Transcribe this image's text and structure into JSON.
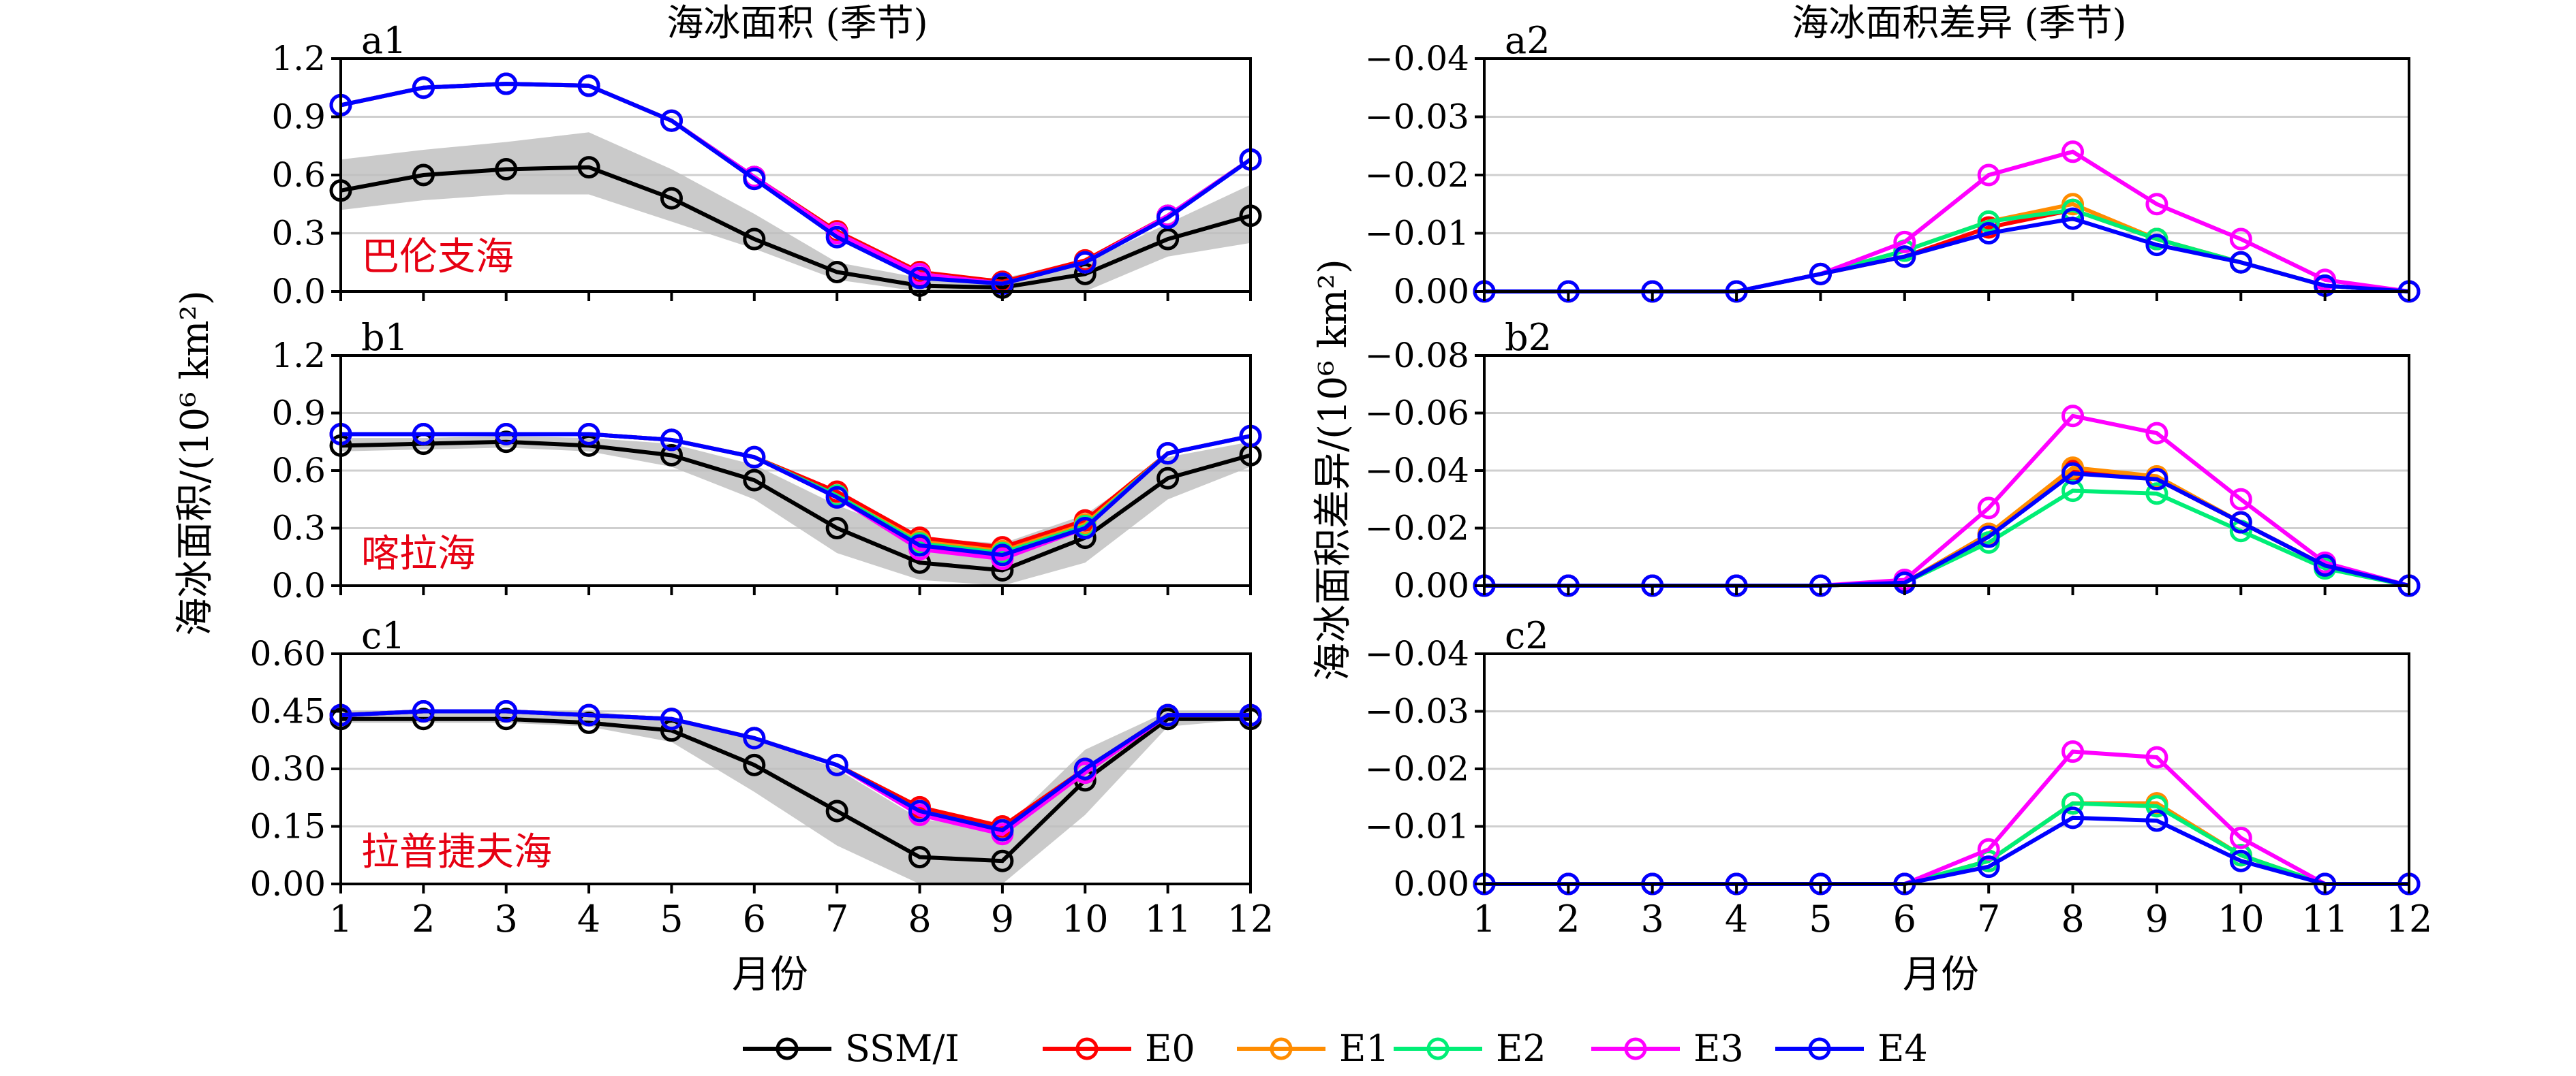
{
  "chart_data": {
    "type": "line",
    "x": [
      1,
      2,
      3,
      4,
      5,
      6,
      7,
      8,
      9,
      10,
      11,
      12
    ],
    "xlabel": "月份",
    "left_title": "海冰面积 (季节)",
    "right_title": "海冰面积差异 (季节)",
    "left_ylabel": "海冰面积/(10⁶ km²)",
    "right_ylabel": "海冰面积差异/(10⁶ km²)",
    "legend": [
      {
        "name": "SSM/I",
        "color": "#000000"
      },
      {
        "name": "E0",
        "color": "#ff0000"
      },
      {
        "name": "E1",
        "color": "#ff8c00"
      },
      {
        "name": "E2",
        "color": "#00ee76"
      },
      {
        "name": "E3",
        "color": "#ff00ff"
      },
      {
        "name": "E4",
        "color": "#0000ff"
      }
    ],
    "panels": [
      {
        "id": "a1",
        "label": "a1",
        "region": "巴伦支海",
        "ylim": [
          0,
          1.2
        ],
        "yticks": [
          "0.0",
          "0.3",
          "0.6",
          "0.9",
          "1.2"
        ],
        "yvals": [
          0,
          0.3,
          0.6,
          0.9,
          1.2
        ],
        "band_lo": [
          0.42,
          0.47,
          0.5,
          0.5,
          0.36,
          0.22,
          0.06,
          0.0,
          0.0,
          0.0,
          0.18,
          0.25
        ],
        "band_hi": [
          0.68,
          0.73,
          0.77,
          0.82,
          0.63,
          0.4,
          0.15,
          0.07,
          0.07,
          0.15,
          0.35,
          0.55
        ],
        "series": [
          {
            "name": "SSM/I",
            "values": [
              0.52,
              0.6,
              0.63,
              0.64,
              0.48,
              0.27,
              0.1,
              0.03,
              0.02,
              0.09,
              0.27,
              0.39
            ]
          },
          {
            "name": "E0",
            "values": [
              0.96,
              1.05,
              1.07,
              1.06,
              0.88,
              0.59,
              0.31,
              0.1,
              0.05,
              0.16,
              0.39,
              0.68
            ]
          },
          {
            "name": "E1",
            "values": [
              0.96,
              1.05,
              1.07,
              1.06,
              0.88,
              0.59,
              0.3,
              0.09,
              0.04,
              0.15,
              0.39,
              0.68
            ]
          },
          {
            "name": "E2",
            "values": [
              0.96,
              1.05,
              1.07,
              1.06,
              0.88,
              0.59,
              0.3,
              0.09,
              0.04,
              0.15,
              0.39,
              0.68
            ]
          },
          {
            "name": "E3",
            "values": [
              0.96,
              1.05,
              1.07,
              1.06,
              0.88,
              0.59,
              0.3,
              0.09,
              0.04,
              0.15,
              0.39,
              0.68
            ]
          },
          {
            "name": "E4",
            "values": [
              0.96,
              1.05,
              1.07,
              1.06,
              0.88,
              0.58,
              0.28,
              0.07,
              0.04,
              0.15,
              0.38,
              0.68
            ]
          }
        ]
      },
      {
        "id": "b1",
        "label": "b1",
        "region": "喀拉海",
        "ylim": [
          0,
          1.2
        ],
        "yticks": [
          "0.0",
          "0.3",
          "0.6",
          "0.9",
          "1.2"
        ],
        "yvals": [
          0,
          0.3,
          0.6,
          0.9,
          1.2
        ],
        "band_lo": [
          0.7,
          0.71,
          0.72,
          0.7,
          0.62,
          0.45,
          0.17,
          0.03,
          0.0,
          0.12,
          0.45,
          0.62
        ],
        "band_hi": [
          0.77,
          0.77,
          0.78,
          0.77,
          0.74,
          0.63,
          0.42,
          0.25,
          0.22,
          0.37,
          0.67,
          0.75
        ],
        "series": [
          {
            "name": "SSM/I",
            "values": [
              0.73,
              0.74,
              0.75,
              0.73,
              0.68,
              0.55,
              0.3,
              0.12,
              0.08,
              0.25,
              0.56,
              0.68
            ]
          },
          {
            "name": "E0",
            "values": [
              0.79,
              0.79,
              0.79,
              0.79,
              0.76,
              0.67,
              0.49,
              0.25,
              0.2,
              0.34,
              0.69,
              0.78
            ]
          },
          {
            "name": "E1",
            "values": [
              0.79,
              0.79,
              0.79,
              0.79,
              0.76,
              0.67,
              0.47,
              0.23,
              0.18,
              0.32,
              0.69,
              0.78
            ]
          },
          {
            "name": "E2",
            "values": [
              0.79,
              0.79,
              0.79,
              0.79,
              0.76,
              0.67,
              0.47,
              0.22,
              0.17,
              0.31,
              0.69,
              0.78
            ]
          },
          {
            "name": "E3",
            "values": [
              0.79,
              0.79,
              0.79,
              0.79,
              0.76,
              0.67,
              0.46,
              0.19,
              0.14,
              0.3,
              0.69,
              0.78
            ]
          },
          {
            "name": "E4",
            "values": [
              0.79,
              0.79,
              0.79,
              0.79,
              0.76,
              0.67,
              0.46,
              0.21,
              0.16,
              0.3,
              0.69,
              0.78
            ]
          }
        ]
      },
      {
        "id": "c1",
        "label": "c1",
        "region": "拉普捷夫海",
        "ylim": [
          0,
          0.6
        ],
        "yticks": [
          "0.00",
          "0.15",
          "0.30",
          "0.45",
          "0.60"
        ],
        "yvals": [
          0,
          0.15,
          0.3,
          0.45,
          0.6
        ],
        "band_lo": [
          0.42,
          0.42,
          0.42,
          0.41,
          0.37,
          0.24,
          0.1,
          0.0,
          0.0,
          0.18,
          0.41,
          0.43
        ],
        "band_hi": [
          0.45,
          0.45,
          0.45,
          0.45,
          0.43,
          0.38,
          0.3,
          0.17,
          0.14,
          0.35,
          0.45,
          0.45
        ],
        "series": [
          {
            "name": "SSM/I",
            "values": [
              0.43,
              0.43,
              0.43,
              0.42,
              0.4,
              0.31,
              0.19,
              0.07,
              0.06,
              0.27,
              0.43,
              0.43
            ]
          },
          {
            "name": "E0",
            "values": [
              0.44,
              0.45,
              0.45,
              0.44,
              0.43,
              0.38,
              0.31,
              0.2,
              0.15,
              0.3,
              0.44,
              0.44
            ]
          },
          {
            "name": "E1",
            "values": [
              0.44,
              0.45,
              0.45,
              0.44,
              0.43,
              0.38,
              0.31,
              0.19,
              0.14,
              0.29,
              0.44,
              0.44
            ]
          },
          {
            "name": "E2",
            "values": [
              0.44,
              0.45,
              0.45,
              0.44,
              0.43,
              0.38,
              0.31,
              0.19,
              0.14,
              0.29,
              0.44,
              0.44
            ]
          },
          {
            "name": "E3",
            "values": [
              0.44,
              0.45,
              0.45,
              0.44,
              0.43,
              0.38,
              0.31,
              0.18,
              0.13,
              0.29,
              0.44,
              0.44
            ]
          },
          {
            "name": "E4",
            "values": [
              0.44,
              0.45,
              0.45,
              0.44,
              0.43,
              0.38,
              0.31,
              0.19,
              0.14,
              0.3,
              0.44,
              0.44
            ]
          }
        ]
      },
      {
        "id": "a2",
        "label": "a2",
        "region": "",
        "ylim": [
          0,
          -0.04
        ],
        "yticks": [
          "0.00",
          "−0.01",
          "−0.02",
          "−0.03",
          "−0.04"
        ],
        "yvals": [
          0,
          -0.01,
          -0.02,
          -0.03,
          -0.04
        ],
        "series": [
          {
            "name": "E0",
            "values": [
              0,
              0,
              0,
              0,
              -0.003,
              -0.006,
              -0.011,
              -0.014,
              -0.009,
              -0.005,
              -0.001,
              0
            ]
          },
          {
            "name": "E1",
            "values": [
              0,
              0,
              0,
              0,
              -0.003,
              -0.007,
              -0.012,
              -0.015,
              -0.009,
              -0.005,
              -0.001,
              0
            ]
          },
          {
            "name": "E2",
            "values": [
              0,
              0,
              0,
              0,
              -0.003,
              -0.007,
              -0.012,
              -0.014,
              -0.009,
              -0.005,
              -0.001,
              0
            ]
          },
          {
            "name": "E3",
            "values": [
              0,
              0,
              0,
              0,
              -0.003,
              -0.0085,
              -0.02,
              -0.024,
              -0.015,
              -0.009,
              -0.002,
              0
            ]
          },
          {
            "name": "E4",
            "values": [
              0,
              0,
              0,
              0,
              -0.003,
              -0.006,
              -0.01,
              -0.0125,
              -0.008,
              -0.005,
              -0.001,
              0
            ]
          }
        ]
      },
      {
        "id": "b2",
        "label": "b2",
        "region": "",
        "ylim": [
          0,
          -0.08
        ],
        "yticks": [
          "0.00",
          "−0.02",
          "−0.04",
          "−0.06",
          "−0.08"
        ],
        "yvals": [
          0,
          -0.02,
          -0.04,
          -0.06,
          -0.08
        ],
        "series": [
          {
            "name": "E0",
            "values": [
              0,
              0,
              0,
              0,
              0,
              -0.001,
              -0.018,
              -0.04,
              -0.037,
              -0.022,
              -0.007,
              0
            ]
          },
          {
            "name": "E1",
            "values": [
              0,
              0,
              0,
              0,
              0,
              -0.001,
              -0.018,
              -0.041,
              -0.038,
              -0.022,
              -0.007,
              0
            ]
          },
          {
            "name": "E2",
            "values": [
              0,
              0,
              0,
              0,
              0,
              -0.001,
              -0.015,
              -0.033,
              -0.032,
              -0.019,
              -0.006,
              0
            ]
          },
          {
            "name": "E3",
            "values": [
              0,
              0,
              0,
              0,
              0,
              -0.002,
              -0.027,
              -0.059,
              -0.053,
              -0.03,
              -0.008,
              0
            ]
          },
          {
            "name": "E4",
            "values": [
              0,
              0,
              0,
              0,
              0,
              -0.001,
              -0.017,
              -0.039,
              -0.037,
              -0.022,
              -0.007,
              0
            ]
          }
        ]
      },
      {
        "id": "c2",
        "label": "c2",
        "region": "",
        "ylim": [
          0,
          -0.04
        ],
        "yticks": [
          "0.00",
          "−0.01",
          "−0.02",
          "−0.03",
          "−0.04"
        ],
        "yvals": [
          0,
          -0.01,
          -0.02,
          -0.03,
          -0.04
        ],
        "series": [
          {
            "name": "E0",
            "values": [
              0,
              0,
              0,
              0,
              0,
              0,
              -0.004,
              -0.014,
              -0.014,
              -0.005,
              0,
              0
            ]
          },
          {
            "name": "E1",
            "values": [
              0,
              0,
              0,
              0,
              0,
              0,
              -0.004,
              -0.014,
              -0.014,
              -0.005,
              0,
              0
            ]
          },
          {
            "name": "E2",
            "values": [
              0,
              0,
              0,
              0,
              0,
              0,
              -0.004,
              -0.014,
              -0.0135,
              -0.005,
              0,
              0
            ]
          },
          {
            "name": "E3",
            "values": [
              0,
              0,
              0,
              0,
              0,
              0,
              -0.006,
              -0.023,
              -0.022,
              -0.008,
              0,
              0
            ]
          },
          {
            "name": "E4",
            "values": [
              0,
              0,
              0,
              0,
              0,
              0,
              -0.003,
              -0.0115,
              -0.011,
              -0.004,
              0,
              0
            ]
          }
        ]
      }
    ]
  }
}
